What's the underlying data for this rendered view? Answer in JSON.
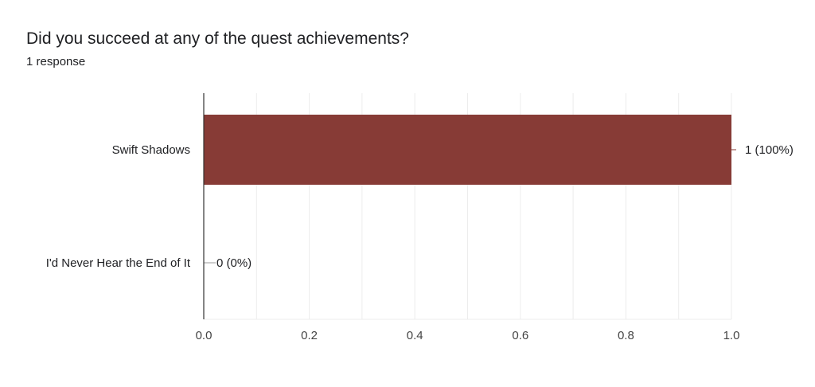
{
  "question": {
    "title": "Did you succeed at any of the quest achievements?",
    "response_count": "1 response"
  },
  "colors": {
    "bar": "#873b36",
    "grid": "#ececec",
    "axis": "#333333",
    "text": "#202124"
  },
  "chart_data": {
    "type": "bar",
    "orientation": "horizontal",
    "categories": [
      "Swift Shadows",
      "I'd Never Hear the End of It"
    ],
    "values": [
      1,
      0
    ],
    "data_labels": [
      "1 (100%)",
      "0 (0%)"
    ],
    "xlim": [
      0,
      1
    ],
    "x_ticks": [
      0,
      0.2,
      0.4,
      0.6,
      0.8,
      1.0
    ],
    "x_tick_labels": [
      "0.0",
      "0.2",
      "0.4",
      "0.6",
      "0.8",
      "1.0"
    ],
    "grid": true,
    "legend": "none"
  }
}
